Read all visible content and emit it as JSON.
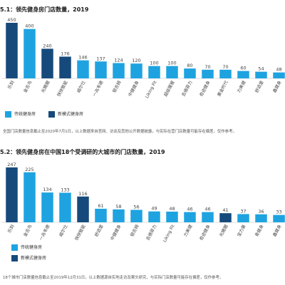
{
  "chart_data": [
    {
      "type": "bar",
      "title": "5.1：领先健身房门店数量，2019",
      "categories": [
        "乐刻",
        "金吉鸟",
        "光猪圈",
        "快快智能",
        "威尔仕",
        "一兆韦德",
        "银吉姆",
        "中健健身",
        "Liking Fit",
        "超级猩猩",
        "舌德菲力",
        "奇迹健身",
        "黄金时代",
        "力美健",
        "舒适堡",
        "鑫健身"
      ],
      "values": [
        450,
        400,
        240,
        176,
        146,
        137,
        124,
        120,
        100,
        100,
        80,
        70,
        70,
        60,
        54,
        48
      ],
      "group": [
        "new",
        "traditional",
        "new",
        "new",
        "traditional",
        "traditional",
        "traditional",
        "traditional",
        "traditional",
        "traditional",
        "traditional",
        "traditional",
        "traditional",
        "traditional",
        "traditional",
        "traditional"
      ],
      "ylim": [
        0,
        450
      ],
      "grid": false,
      "legend": [
        "传统健身房",
        "新模式健身房"
      ],
      "note": "全国门店数量信息截止至2020年7月1日，以上数据来自官网、访谈及其他公开数据披露，与实际在营门店数量可能存在偏差，仅作参考。"
    },
    {
      "type": "bar",
      "title": "5.2：领先健身房在中国18个受调研的大城市的门店数量，2019",
      "categories": [
        "乐刻",
        "金吉鸟",
        "一兆韦德",
        "威尔仕",
        "快快智能",
        "舒适堡",
        "中健健身",
        "银吉姆",
        "舌德菲力",
        "Liking Fit",
        "力美健",
        "奇迹健身",
        "光猪圈",
        "宝力豪",
        "青健身",
        "鑫健身"
      ],
      "values": [
        247,
        225,
        134,
        133,
        116,
        61,
        58,
        56,
        49,
        48,
        46,
        46,
        41,
        37,
        36,
        33
      ],
      "group": [
        "new",
        "traditional",
        "traditional",
        "traditional",
        "new",
        "traditional",
        "traditional",
        "traditional",
        "traditional",
        "traditional",
        "traditional",
        "traditional",
        "new",
        "traditional",
        "traditional",
        "traditional"
      ],
      "ylim": [
        0,
        250
      ],
      "grid": false,
      "legend": [
        "传统健身房",
        "新模式健身房"
      ],
      "note": "18个城市门店数量信息截止至2019年12月31日，以上数据源自实地走访及案头研究，与实际门店数量可能存在偏差，仅作参考。"
    }
  ],
  "colors": {
    "traditional": "#1ea3e0",
    "new": "#174a7c"
  }
}
